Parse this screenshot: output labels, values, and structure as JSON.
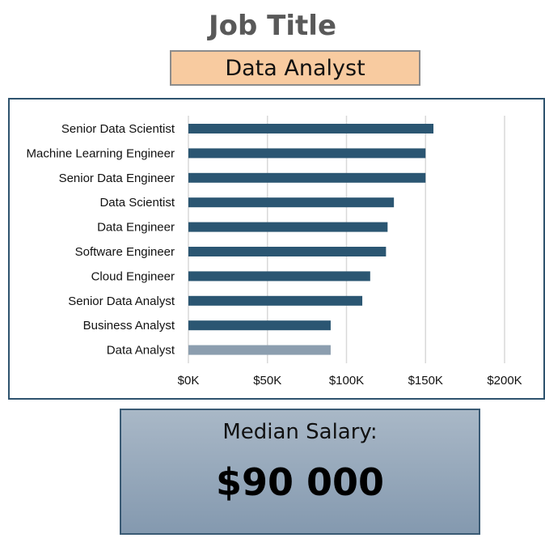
{
  "header": {
    "title": "Job Title"
  },
  "selector": {
    "value": "Data Analyst"
  },
  "chart_data": {
    "type": "bar",
    "orientation": "horizontal",
    "categories": [
      "Senior Data Scientist",
      "Machine Learning Engineer",
      "Senior Data Engineer",
      "Data Scientist",
      "Data Engineer",
      "Software Engineer",
      "Cloud Engineer",
      "Senior Data Analyst",
      "Business Analyst",
      "Data Analyst"
    ],
    "values": [
      155000,
      150000,
      150000,
      130000,
      126000,
      125000,
      115000,
      110000,
      90000,
      90000
    ],
    "highlight": "Data Analyst",
    "xlim": [
      0,
      200000
    ],
    "xticks": [
      0,
      50000,
      100000,
      150000,
      200000
    ],
    "xtick_labels": [
      "$0K",
      "$50K",
      "$100K",
      "$150K",
      "$200K"
    ],
    "grid": "vertical",
    "bar_color": "#2b5672",
    "highlight_color": "#8c9eaf"
  },
  "summary": {
    "label": "Median Salary:",
    "value": "$90 000"
  }
}
